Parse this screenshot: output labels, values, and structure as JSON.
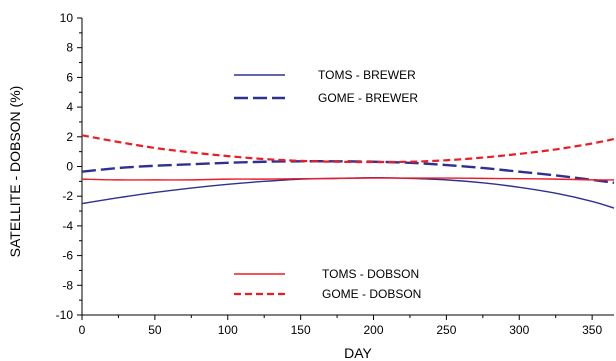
{
  "chart_data": {
    "type": "line",
    "xlabel": "DAY",
    "ylabel": "SATELLITE - DOBSON   (%)",
    "xlim": [
      0,
      365
    ],
    "ylim": [
      -10,
      10
    ],
    "xticks": [
      0,
      50,
      100,
      150,
      200,
      250,
      300,
      350
    ],
    "yticks": [
      -10,
      -8,
      -6,
      -4,
      -2,
      0,
      2,
      4,
      6,
      8,
      10
    ],
    "grid": false,
    "series": [
      {
        "name": "TOMS - BREWER",
        "color": "#2e3192",
        "style": "solid",
        "x": [
          0,
          25,
          50,
          75,
          100,
          125,
          150,
          175,
          200,
          225,
          250,
          275,
          300,
          325,
          350,
          365
        ],
        "y": [
          -2.5,
          -2.1,
          -1.75,
          -1.45,
          -1.2,
          -1.0,
          -0.85,
          -0.8,
          -0.75,
          -0.8,
          -0.9,
          -1.1,
          -1.4,
          -1.8,
          -2.35,
          -2.8
        ]
      },
      {
        "name": "GOME - BREWER",
        "color": "#2e3192",
        "style": "longdash",
        "x": [
          0,
          25,
          50,
          75,
          100,
          125,
          150,
          175,
          200,
          225,
          250,
          275,
          300,
          325,
          350,
          365
        ],
        "y": [
          -0.35,
          -0.1,
          0.05,
          0.15,
          0.25,
          0.32,
          0.35,
          0.35,
          0.32,
          0.25,
          0.1,
          -0.1,
          -0.35,
          -0.6,
          -0.9,
          -1.1
        ]
      },
      {
        "name": "TOMS - DOBSON",
        "color": "#ed1c24",
        "style": "solid",
        "x": [
          0,
          25,
          50,
          75,
          100,
          125,
          150,
          175,
          200,
          225,
          250,
          275,
          300,
          325,
          350,
          365
        ],
        "y": [
          -0.85,
          -0.9,
          -0.9,
          -0.9,
          -0.85,
          -0.85,
          -0.82,
          -0.8,
          -0.78,
          -0.78,
          -0.78,
          -0.8,
          -0.82,
          -0.85,
          -0.9,
          -0.9
        ]
      },
      {
        "name": "GOME - DOBSON",
        "color": "#ed1c24",
        "style": "dash",
        "x": [
          0,
          25,
          50,
          75,
          100,
          125,
          150,
          175,
          200,
          225,
          250,
          275,
          300,
          325,
          350,
          365
        ],
        "y": [
          2.1,
          1.65,
          1.25,
          0.95,
          0.7,
          0.5,
          0.38,
          0.32,
          0.3,
          0.32,
          0.42,
          0.6,
          0.85,
          1.15,
          1.55,
          1.85
        ]
      }
    ],
    "legend_groups": [
      {
        "placement": "upper-middle",
        "entries": [
          0,
          1
        ]
      },
      {
        "placement": "lower-middle",
        "entries": [
          2,
          3
        ]
      }
    ]
  }
}
